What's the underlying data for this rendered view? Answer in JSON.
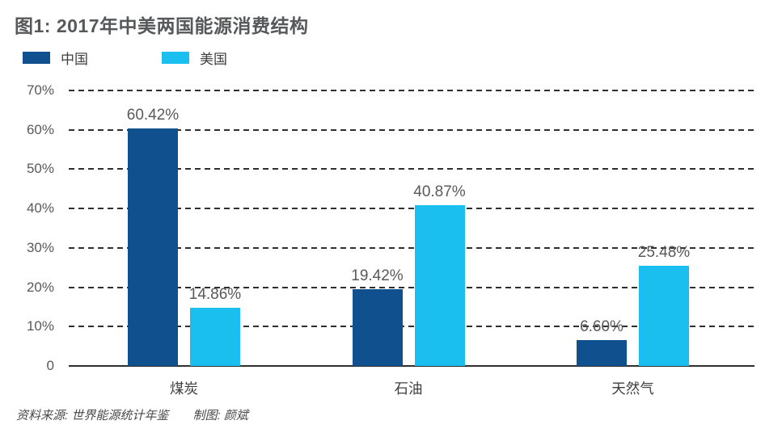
{
  "title": "图1: 2017年中美两国能源消费结构",
  "footer": {
    "source": "资料来源: 世界能源统计年鉴",
    "credit": "制图: 颜斌"
  },
  "colors": {
    "china": "#11508F",
    "usa": "#1ABEEF",
    "title_text": "#57585A",
    "label_text": "#595959",
    "axis": "#2F2F2F"
  },
  "chart_data": {
    "type": "bar",
    "title": "图1: 2017年中美两国能源消费结构",
    "categories": [
      "煤炭",
      "石油",
      "天然气"
    ],
    "series": [
      {
        "name": "中国",
        "color": "#11508F",
        "values": [
          60.42,
          19.42,
          6.6
        ],
        "value_labels": [
          "60.42%",
          "19.42%",
          "6.60%"
        ]
      },
      {
        "name": "美国",
        "color": "#1ABEEF",
        "values": [
          14.86,
          40.87,
          25.48
        ],
        "value_labels": [
          "14.86%",
          "40.87%",
          "25.48%"
        ]
      }
    ],
    "xlabel": "",
    "ylabel": "",
    "ylim": [
      0,
      70
    ],
    "y_axis": {
      "tick_labels": [
        "70%",
        "60%",
        "50%",
        "40%",
        "30%",
        "20%",
        "10%",
        "0"
      ],
      "tick_values": [
        70,
        60,
        50,
        40,
        30,
        20,
        10,
        0
      ],
      "grid": "dashed horizontal"
    },
    "legend_position": "top-left"
  }
}
